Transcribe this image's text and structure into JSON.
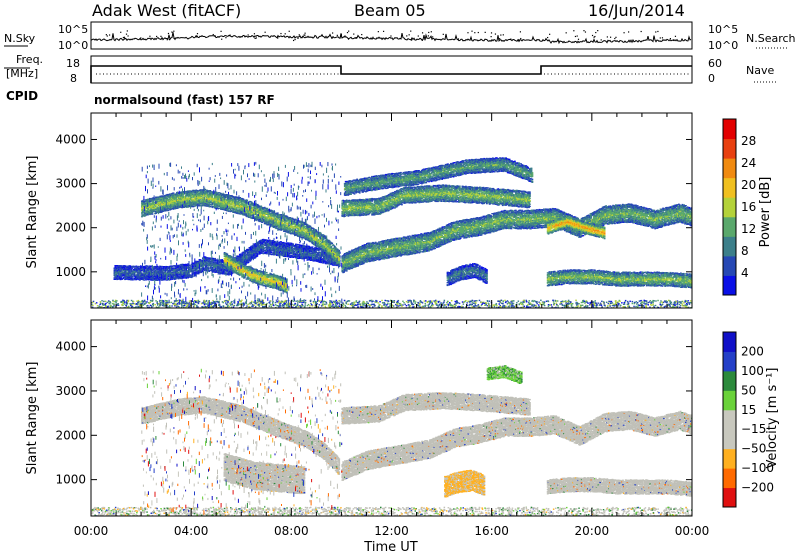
{
  "header": {
    "station": "Adak West (fitACF)",
    "beam": "Beam 05",
    "date": "16/Jun/2014"
  },
  "noise_panel": {
    "left_label": "N.Sky",
    "left_ticks": [
      "10^5",
      "10^0"
    ],
    "right_ticks": [
      "10^5",
      "10^0"
    ],
    "right_label": "N.Search"
  },
  "freq_panel": {
    "left_label_1": "Freq.",
    "left_label_2": "[MHz]",
    "left_ticks": [
      "18",
      "8"
    ],
    "right_ticks": [
      "60",
      "0"
    ],
    "right_label": "Nave",
    "cpid_label": "CPID",
    "cpid_text": "normalsound (fast) 157 RF"
  },
  "colors": {
    "power_scale": [
      "#0a10e6",
      "#2648b4",
      "#3c7f8a",
      "#5aa86c",
      "#b4d23a",
      "#f0c020",
      "#f08a10",
      "#e84010",
      "#e20000"
    ],
    "velocity_scale": [
      "#e01010",
      "#ff6a00",
      "#ffb020",
      "#c8c8be",
      "#c8c8be",
      "#6ad23a",
      "#2c8a3c",
      "#2440c8",
      "#1010c8"
    ],
    "ground_scatter": "#c0c0b8"
  },
  "chart_data": [
    {
      "type": "heatmap",
      "name": "power",
      "ylabel": "Slant Range [km]",
      "xlabel": "",
      "xlim": [
        0,
        24
      ],
      "ylim": [
        180,
        4600
      ],
      "yticks": [
        "1000",
        "2000",
        "3000",
        "4000"
      ],
      "colorbar": {
        "label": "Power [dB]",
        "range": [
          0,
          32
        ],
        "ticks": [
          "4",
          "8",
          "12",
          "16",
          "20",
          "24",
          "28"
        ]
      },
      "bands": [
        {
          "x": [
            0.9,
            3.0,
            4.0,
            4.5,
            5.5,
            6.8,
            8.0,
            9.0,
            9.9
          ],
          "y": [
            1000,
            980,
            1050,
            1200,
            1100,
            1600,
            1500,
            1400,
            1300
          ],
          "width": 130,
          "level": 8
        },
        {
          "x": [
            2.0,
            3.5,
            4.5,
            6.0,
            7.5,
            8.5,
            9.3,
            9.9
          ],
          "y": [
            2450,
            2650,
            2700,
            2500,
            2150,
            1950,
            1650,
            1300
          ],
          "width": 170,
          "level": 18
        },
        {
          "x": [
            5.3,
            6.0,
            6.7,
            7.3,
            7.8
          ],
          "y": [
            1300,
            1050,
            880,
            800,
            700
          ],
          "width": 150,
          "level": 22
        },
        {
          "x": [
            10.0,
            11.0,
            12.5,
            13.5,
            14.5,
            15.5,
            16.5,
            17.5,
            18.5,
            19.5,
            20.5,
            21.5,
            22.5,
            23.5,
            24.0
          ],
          "y": [
            1200,
            1450,
            1600,
            1700,
            1950,
            2050,
            2200,
            2200,
            2250,
            2000,
            2300,
            2350,
            2200,
            2350,
            2250
          ],
          "width": 180,
          "level": 16
        },
        {
          "x": [
            10.0,
            11.5,
            12.5,
            14.0,
            15.5,
            17.5
          ],
          "y": [
            2450,
            2500,
            2750,
            2800,
            2750,
            2650
          ],
          "width": 170,
          "level": 17
        },
        {
          "x": [
            10.1,
            11.5,
            13.0,
            15.0,
            16.5,
            17.6
          ],
          "y": [
            2900,
            3050,
            3150,
            3400,
            3450,
            3200
          ],
          "width": 140,
          "level": 14
        },
        {
          "x": [
            14.2,
            14.7,
            15.3,
            15.8
          ],
          "y": [
            850,
            980,
            1050,
            900
          ],
          "width": 130,
          "level": 10
        },
        {
          "x": [
            18.2,
            19.0,
            20.0,
            21.0,
            22.0,
            23.0,
            24.0
          ],
          "y": [
            850,
            900,
            900,
            850,
            850,
            850,
            800
          ],
          "width": 150,
          "level": 17
        },
        {
          "x": [
            18.2,
            19.0,
            19.8,
            20.5
          ],
          "y": [
            2000,
            2150,
            2000,
            1900
          ],
          "width": 110,
          "level": 25
        }
      ]
    },
    {
      "type": "heatmap",
      "name": "velocity",
      "ylabel": "Slant Range [km]",
      "xlabel": "Time UT",
      "xlim": [
        0,
        24
      ],
      "ylim": [
        180,
        4600
      ],
      "xticks": [
        "00:00",
        "04:00",
        "08:00",
        "12:00",
        "16:00",
        "20:00",
        "00:00"
      ],
      "yticks": [
        "1000",
        "2000",
        "3000",
        "4000"
      ],
      "colorbar": {
        "label": "Velocity [m s⁻¹]",
        "ticks": [
          "200",
          "100",
          "50",
          "15",
          "−15",
          "−50",
          "−100",
          "−200"
        ]
      },
      "regions": [
        {
          "x": [
            2.0,
            3.5,
            4.5,
            6.0,
            7.5,
            8.5,
            9.3,
            9.9
          ],
          "y": [
            2450,
            2650,
            2700,
            2500,
            2150,
            1950,
            1650,
            1300
          ],
          "width": 170,
          "value": 0
        },
        {
          "x": [
            10.0,
            11.0,
            12.5,
            13.5,
            14.5,
            15.5,
            16.5,
            17.5,
            18.5,
            19.5,
            20.5,
            21.5,
            22.5,
            23.5,
            24.0
          ],
          "y": [
            1200,
            1450,
            1600,
            1700,
            1950,
            2050,
            2200,
            2200,
            2250,
            2000,
            2300,
            2350,
            2200,
            2350,
            2250
          ],
          "width": 180,
          "value": 0
        },
        {
          "x": [
            10.0,
            11.5,
            12.5,
            14.0,
            15.5,
            17.5
          ],
          "y": [
            2450,
            2500,
            2750,
            2800,
            2750,
            2650
          ],
          "width": 170,
          "value": 0
        },
        {
          "x": [
            15.8,
            16.5,
            17.2
          ],
          "y": [
            3400,
            3450,
            3300
          ],
          "width": 120,
          "value": 45
        },
        {
          "x": [
            14.1,
            14.6,
            15.2,
            15.7
          ],
          "y": [
            850,
            950,
            1000,
            880
          ],
          "width": 220,
          "value": -60
        },
        {
          "x": [
            18.2,
            19.0,
            20.0,
            21.0,
            22.0,
            23.0,
            24.0
          ],
          "y": [
            850,
            900,
            900,
            850,
            850,
            850,
            800
          ],
          "width": 150,
          "value": 0
        },
        {
          "x": [
            5.3,
            6.5,
            7.5,
            8.5
          ],
          "y": [
            1300,
            1100,
            1050,
            1000
          ],
          "width": 300,
          "value": 0
        }
      ]
    }
  ]
}
